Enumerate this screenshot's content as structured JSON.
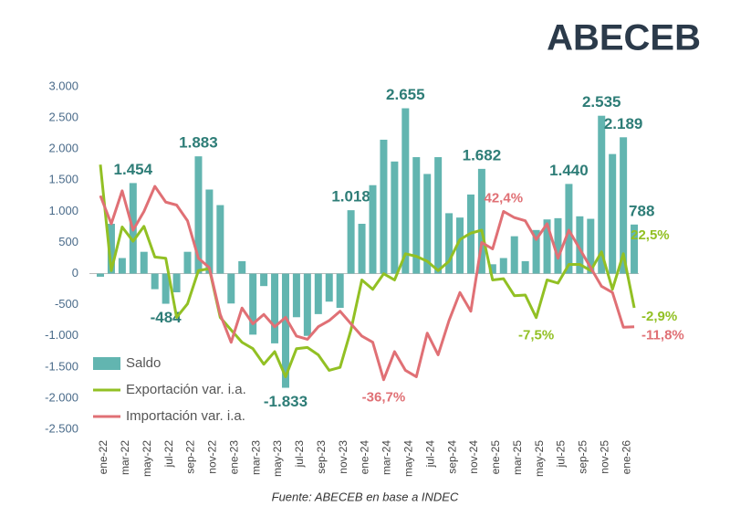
{
  "brand": "ABECEB",
  "chart_data": {
    "type": "bar-line",
    "source": "Fuente: ABECEB en base a INDEC",
    "categories": [
      "ene-22",
      null,
      "mar-22",
      null,
      "may-22",
      null,
      "jul-22",
      null,
      "sep-22",
      null,
      "nov-22",
      null,
      "ene-23",
      null,
      "mar-23",
      null,
      "may-23",
      null,
      "jul-23",
      null,
      "sep-23",
      null,
      "nov-23",
      null,
      "ene-24",
      null,
      "mar-24",
      null,
      "may-24",
      null,
      "jul-24",
      null,
      "sep-24",
      null,
      "nov-24",
      null,
      "ene-25",
      null,
      "mar-25",
      null,
      "may-25",
      null,
      "jul-25",
      null,
      "sep-25",
      null,
      "nov-25",
      null,
      "ene-26",
      null
    ],
    "ylim": [
      -2500,
      3000
    ],
    "yticks": [
      {
        "value": 3000,
        "label": "3.000"
      },
      {
        "value": 2500,
        "label": "2.500"
      },
      {
        "value": 2000,
        "label": "2.000"
      },
      {
        "value": 1500,
        "label": "1.500"
      },
      {
        "value": 1000,
        "label": "1.000"
      },
      500,
      0,
      -500,
      {
        "value": -1000,
        "label": "-1.000"
      },
      {
        "value": -1500,
        "label": "-1.500"
      },
      {
        "value": -2000,
        "label": "-2.000"
      },
      {
        "value": -2500,
        "label": "-2.500"
      }
    ],
    "y2lim": [
      -60,
      101
    ],
    "series": [
      {
        "name": "Saldo",
        "type": "bar",
        "color": "#62b5b0",
        "values": [
          -50,
          800,
          250,
          1454,
          350,
          -250,
          -484,
          -300,
          350,
          1883,
          1350,
          1100,
          -480,
          200,
          -980,
          -200,
          -1120,
          -1833,
          -700,
          -1000,
          -650,
          -450,
          -550,
          1018,
          800,
          1420,
          2150,
          1800,
          2655,
          1870,
          1600,
          1870,
          970,
          900,
          1270,
          1682,
          150,
          250,
          600,
          200,
          700,
          870,
          890,
          1440,
          920,
          880,
          2535,
          1920,
          2189,
          788
        ],
        "value_labels": [
          null,
          null,
          null,
          "1.454",
          null,
          null,
          "-484",
          null,
          null,
          "1.883",
          null,
          null,
          null,
          null,
          null,
          null,
          null,
          "-1.833",
          null,
          null,
          null,
          null,
          null,
          "1.018",
          null,
          null,
          null,
          null,
          "2.655",
          null,
          null,
          null,
          null,
          null,
          null,
          "1.682",
          null,
          null,
          null,
          null,
          null,
          null,
          null,
          "1.440",
          null,
          null,
          "2.535",
          null,
          "2.189",
          "788"
        ]
      },
      {
        "name": "Exportación var. i.a.",
        "type": "line",
        "axis": "y2",
        "color": "#92c024",
        "values": [
          64.4,
          14.6,
          35.1,
          28.4,
          35.4,
          21.0,
          20.4,
          -7.4,
          -1.0,
          14.6,
          15.5,
          -7.4,
          -13.3,
          -19.1,
          -22.1,
          -29.4,
          -23.5,
          -35.3,
          -22.1,
          -21.5,
          -25.0,
          -32.3,
          -30.9,
          -13.3,
          10.2,
          5.8,
          13.1,
          10.2,
          22.5,
          21.3,
          19.0,
          14.6,
          19.0,
          29.2,
          32.2,
          33.6,
          10.2,
          10.8,
          2.8,
          3.1,
          -7.5,
          10.2,
          8.7,
          17.5,
          17.5,
          14.6,
          23.4,
          5.8,
          22.5,
          -2.9
        ],
        "value_labels": [
          null,
          null,
          null,
          null,
          null,
          null,
          null,
          null,
          null,
          null,
          null,
          null,
          null,
          null,
          null,
          null,
          null,
          null,
          null,
          null,
          null,
          null,
          null,
          null,
          null,
          null,
          null,
          null,
          null,
          null,
          null,
          null,
          null,
          null,
          null,
          null,
          null,
          null,
          null,
          null,
          "-7,5%",
          null,
          null,
          null,
          null,
          null,
          null,
          null,
          "22,5%",
          "-2,9%"
        ]
      },
      {
        "name": "Importación var. i.a.",
        "type": "line",
        "axis": "y2",
        "color": "#e07075",
        "values": [
          49.8,
          36.6,
          52.1,
          33.6,
          42.4,
          54.2,
          46.8,
          45.4,
          38.0,
          20.4,
          16.0,
          -6.0,
          -19.1,
          -3.0,
          -10.4,
          -6.0,
          -11.8,
          -7.4,
          -16.2,
          -17.7,
          -11.8,
          -8.9,
          -4.5,
          -10.4,
          -16.2,
          -19.1,
          -36.7,
          -23.5,
          -32.3,
          -35.3,
          -14.8,
          -25.0,
          -8.9,
          4.3,
          -4.5,
          27.8,
          24.8,
          42.4,
          39.5,
          38.0,
          29.2,
          36.6,
          20.4,
          33.6,
          24.8,
          16.0,
          7.2,
          4.3,
          -12.0,
          -11.8
        ],
        "value_labels": [
          null,
          null,
          null,
          null,
          null,
          null,
          null,
          null,
          null,
          null,
          null,
          null,
          null,
          null,
          null,
          null,
          null,
          null,
          null,
          null,
          null,
          null,
          null,
          null,
          null,
          null,
          "-36,7%",
          null,
          null,
          null,
          null,
          null,
          null,
          null,
          null,
          null,
          null,
          "42,4%",
          null,
          null,
          null,
          null,
          null,
          null,
          null,
          null,
          null,
          null,
          null,
          "-11,8%"
        ]
      }
    ]
  }
}
